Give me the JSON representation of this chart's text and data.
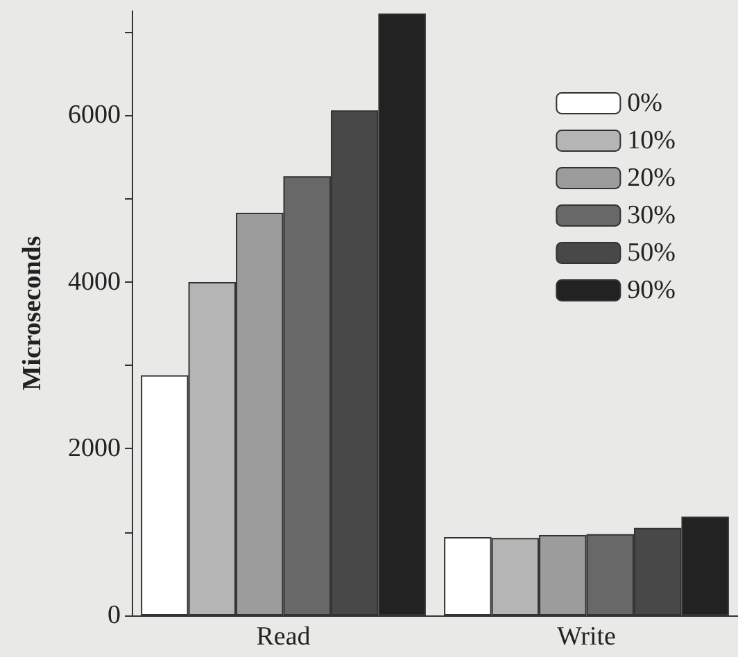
{
  "chart_data": {
    "type": "bar",
    "ylabel": "Microseconds",
    "categories": [
      "Read",
      "Write"
    ],
    "series": [
      {
        "name": "0%",
        "color": "#ffffff",
        "values": [
          2880,
          940
        ]
      },
      {
        "name": "10%",
        "color": "#b5b5b5",
        "values": [
          4000,
          930
        ]
      },
      {
        "name": "20%",
        "color": "#9c9c9c",
        "values": [
          4830,
          965
        ]
      },
      {
        "name": "30%",
        "color": "#686868",
        "values": [
          5270,
          975
        ]
      },
      {
        "name": "50%",
        "color": "#484848",
        "values": [
          6060,
          1050
        ]
      },
      {
        "name": "90%",
        "color": "#222222",
        "values": [
          7220,
          1185
        ]
      }
    ],
    "ylim": [
      0,
      7250
    ],
    "yticks": [
      0,
      {
        "value": 1000,
        "label": null
      },
      2000,
      {
        "value": 3000,
        "label": null
      },
      4000,
      {
        "value": 5000,
        "label": null
      },
      6000,
      {
        "value": 7000,
        "label": null
      }
    ],
    "grid": false,
    "legend": "top right"
  }
}
